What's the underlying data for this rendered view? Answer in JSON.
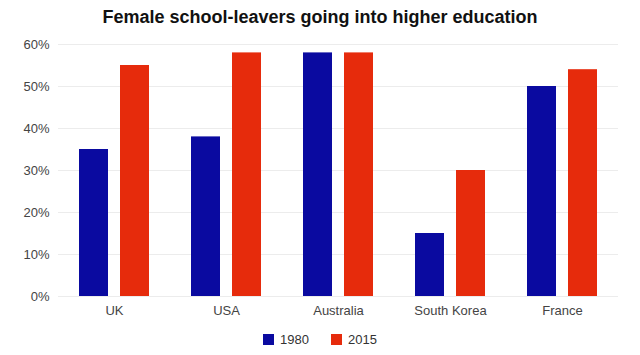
{
  "chart_data": {
    "type": "bar",
    "title": "Female school-leavers going into higher education",
    "categories": [
      "UK",
      "USA",
      "Australia",
      "South Korea",
      "France"
    ],
    "series": [
      {
        "name": "1980",
        "color": "#0a0aa0",
        "values": [
          35,
          38,
          58,
          15,
          50
        ]
      },
      {
        "name": "2015",
        "color": "#e62b0c",
        "values": [
          55,
          58,
          58,
          30,
          54
        ]
      }
    ],
    "ylim": [
      0,
      60
    ],
    "yticks": [
      {
        "value": 0,
        "label": "0%"
      },
      {
        "value": 10,
        "label": "10%"
      },
      {
        "value": 20,
        "label": "20%"
      },
      {
        "value": 30,
        "label": "30%"
      },
      {
        "value": 40,
        "label": "40%"
      },
      {
        "value": 50,
        "label": "50%"
      },
      {
        "value": 60,
        "label": "60%"
      }
    ],
    "grid": true,
    "legend": "bottom"
  }
}
